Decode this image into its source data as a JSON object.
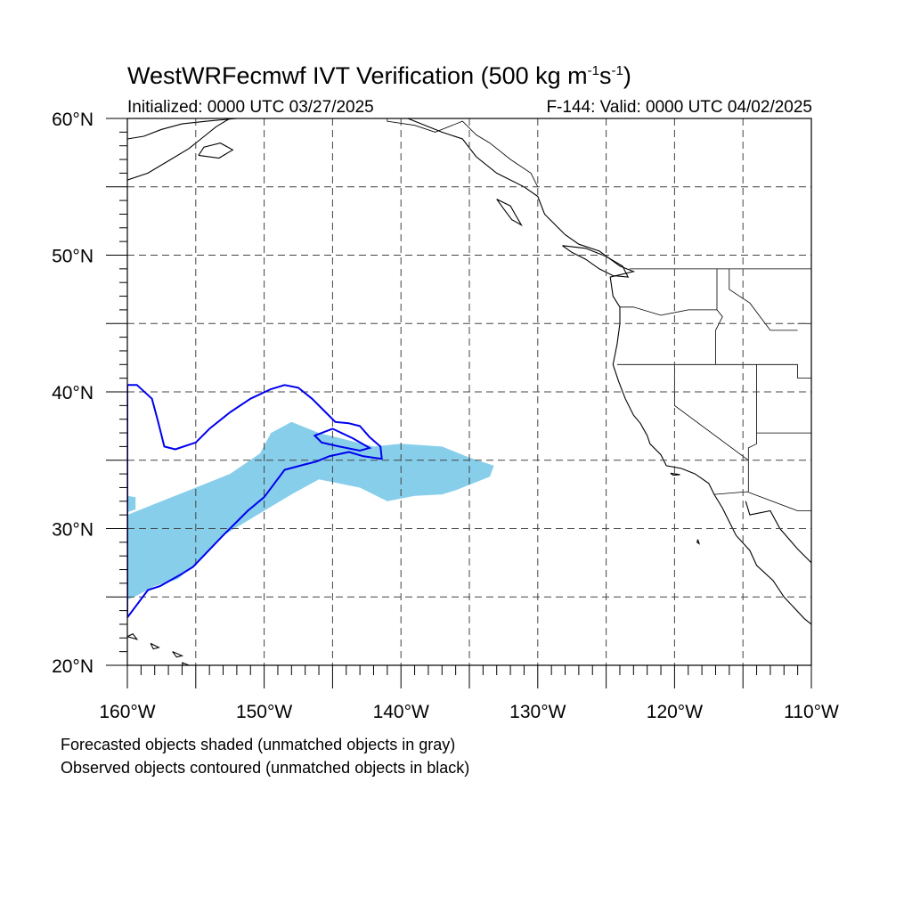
{
  "header": {
    "title_main": "WestWRFecmwf IVT Verification (500 kg m",
    "title_sup1": "-1",
    "title_mid": "s",
    "title_sup2": "-1",
    "title_end": ")",
    "initialized": "Initialized: 0000 UTC 03/27/2025",
    "valid": "F-144: Valid: 0000 UTC 04/02/2025"
  },
  "map": {
    "lon_range": [
      -160,
      -110
    ],
    "lat_range": [
      20,
      60
    ],
    "lon_labels": [
      {
        "lon": -160,
        "label": "160°W"
      },
      {
        "lon": -150,
        "label": "150°W"
      },
      {
        "lon": -140,
        "label": "140°W"
      },
      {
        "lon": -130,
        "label": "130°W"
      },
      {
        "lon": -120,
        "label": "120°W"
      },
      {
        "lon": -110,
        "label": "110°W"
      }
    ],
    "lat_labels": [
      {
        "lat": 60,
        "label": "60°N"
      },
      {
        "lat": 50,
        "label": "50°N"
      },
      {
        "lat": 40,
        "label": "40°N"
      },
      {
        "lat": 30,
        "label": "30°N"
      },
      {
        "lat": 20,
        "label": "20°N"
      }
    ],
    "gridlines": "dashed every 5°",
    "forecast_object_color": "#87ceeb",
    "observed_contour_color": "#0000ee",
    "forecast_object": [
      [
        -160,
        31.0
      ],
      [
        -157.5,
        32.0
      ],
      [
        -155,
        33.0
      ],
      [
        -152.5,
        34.0
      ],
      [
        -150.3,
        35.5
      ],
      [
        -149.5,
        37.0
      ],
      [
        -148,
        37.8
      ],
      [
        -146,
        37.0
      ],
      [
        -144,
        36.5
      ],
      [
        -142,
        36.0
      ],
      [
        -140,
        36.2
      ],
      [
        -137,
        36.0
      ],
      [
        -135,
        35.2
      ],
      [
        -133.2,
        34.6
      ],
      [
        -133.5,
        33.8
      ],
      [
        -134.5,
        33.4
      ],
      [
        -136,
        32.8
      ],
      [
        -137,
        32.5
      ],
      [
        -139,
        32.4
      ],
      [
        -141,
        32.0
      ],
      [
        -143,
        33.0
      ],
      [
        -146,
        33.6
      ],
      [
        -148,
        32.5
      ],
      [
        -150,
        31.3
      ],
      [
        -153,
        29.5
      ],
      [
        -155,
        27.5
      ],
      [
        -156.3,
        26.3
      ],
      [
        -158,
        25.8
      ],
      [
        -159.5,
        25.0
      ],
      [
        -160,
        24.8
      ]
    ],
    "observed_object": [
      [
        -160,
        40.5
      ],
      [
        -159.3,
        40.5
      ],
      [
        -158.2,
        39.5
      ],
      [
        -157.8,
        38.0
      ],
      [
        -157.6,
        37.2
      ],
      [
        -157.3,
        36.0
      ],
      [
        -156.5,
        35.8
      ],
      [
        -155,
        36.3
      ],
      [
        -154,
        37.3
      ],
      [
        -152.5,
        38.5
      ],
      [
        -151,
        39.5
      ],
      [
        -149.5,
        40.2
      ],
      [
        -148.5,
        40.5
      ],
      [
        -147.5,
        40.3
      ],
      [
        -146.5,
        39.5
      ],
      [
        -145.5,
        38.5
      ],
      [
        -144.8,
        37.8
      ],
      [
        -143.8,
        37.7
      ],
      [
        -143,
        37.5
      ],
      [
        -142.3,
        36.7
      ],
      [
        -141.5,
        36.0
      ],
      [
        -141.4,
        35.1
      ],
      [
        -142.8,
        35.3
      ],
      [
        -143.8,
        35.6
      ],
      [
        -145.2,
        35.3
      ],
      [
        -146.2,
        34.9
      ],
      [
        -147,
        34.7
      ],
      [
        -148.5,
        34.3
      ],
      [
        -150,
        32.3
      ],
      [
        -151.2,
        31.3
      ],
      [
        -153,
        29.5
      ],
      [
        -155.2,
        27.2
      ],
      [
        -156,
        26.7
      ],
      [
        -157.6,
        25.8
      ],
      [
        -158.5,
        25.5
      ],
      [
        -160,
        23.5
      ]
    ]
  },
  "notes": {
    "line1": "Forecasted objects shaded (unmatched objects in gray)",
    "line2": "Observed objects contoured (unmatched objects in black)"
  }
}
